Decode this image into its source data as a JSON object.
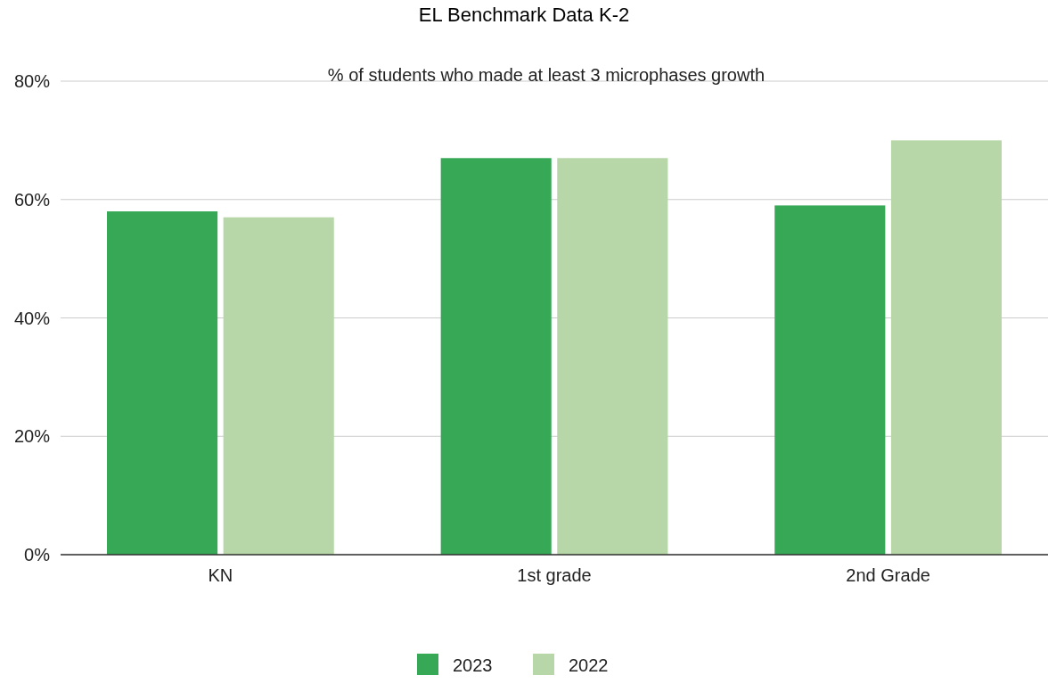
{
  "chart_data": {
    "type": "bar",
    "title": "EL Benchmark Data K-2",
    "subtitle": "% of students who made at least 3 microphases growth",
    "categories": [
      "KN",
      "1st grade",
      "2nd Grade"
    ],
    "series": [
      {
        "name": "2023",
        "color": "#37a856",
        "values": [
          58,
          67,
          59
        ]
      },
      {
        "name": "2022",
        "color": "#b7d7a8",
        "values": [
          57,
          67,
          70
        ]
      }
    ],
    "ylim": [
      0,
      80
    ],
    "yticks": [
      {
        "value": 0,
        "label": "0%"
      },
      {
        "value": 20,
        "label": "20%"
      },
      {
        "value": 40,
        "label": "40%"
      },
      {
        "value": 60,
        "label": "60%"
      },
      {
        "value": 80,
        "label": "80%"
      }
    ],
    "grid": "y",
    "legend": "bottom"
  }
}
